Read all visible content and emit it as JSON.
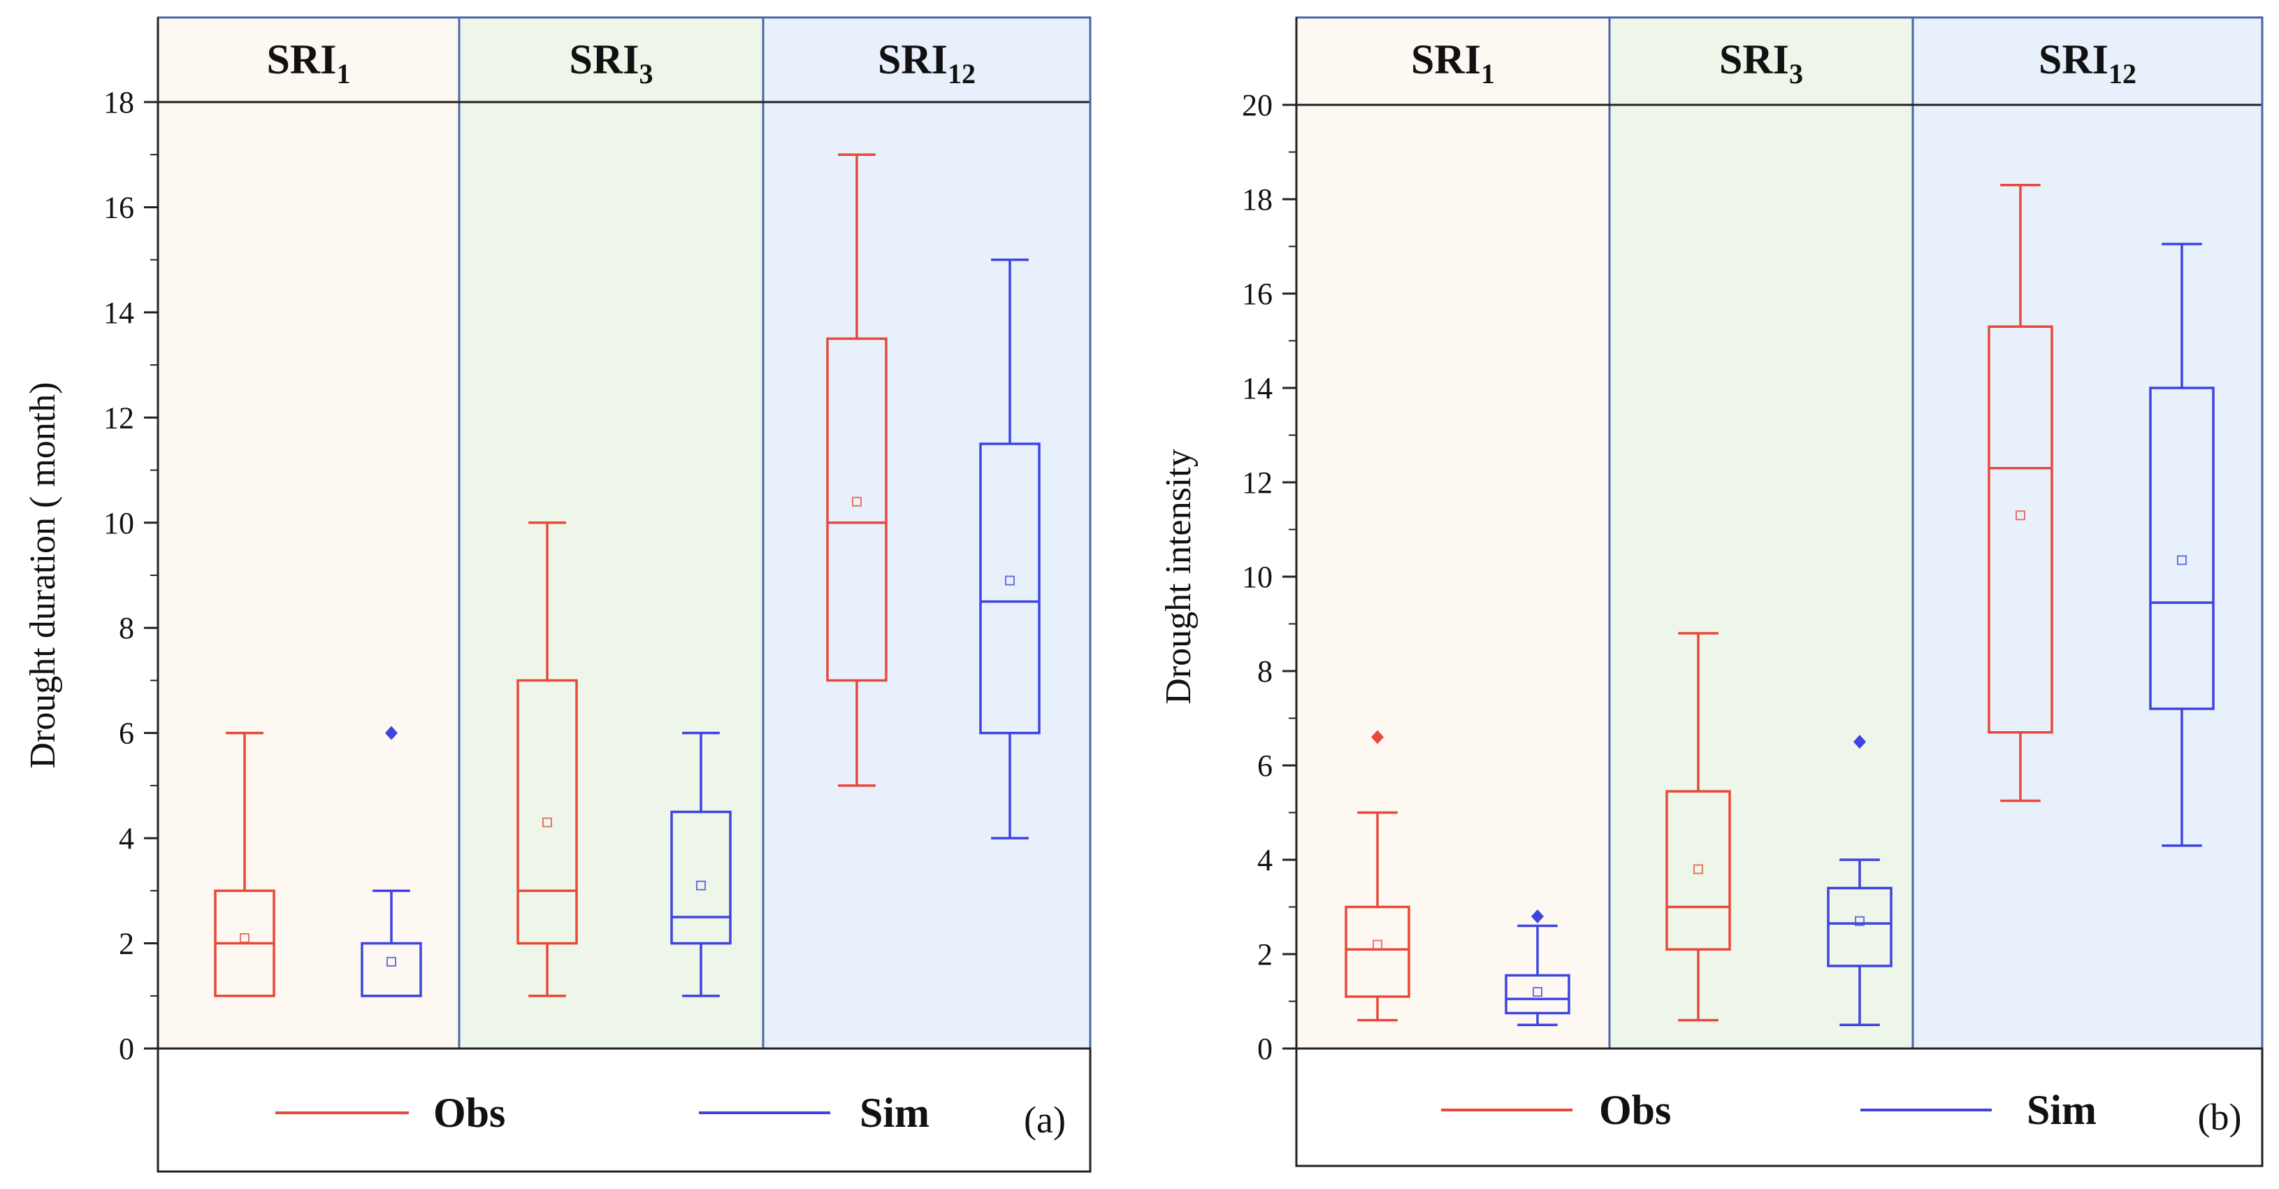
{
  "panels": [
    {
      "tag": "(a)",
      "groups": [
        {
          "base": "SRI",
          "sub": "1",
          "bg": "#fdf8f1"
        },
        {
          "base": "SRI",
          "sub": "3",
          "bg": "#eef5e9"
        },
        {
          "base": "SRI",
          "sub": "12",
          "bg": "#e8f1fb"
        }
      ],
      "legend": [
        {
          "label": "Obs",
          "color": "#e8483a"
        },
        {
          "label": "Sim",
          "color": "#3e44e0"
        }
      ]
    },
    {
      "tag": "(b)",
      "groups": [
        {
          "base": "SRI",
          "sub": "1",
          "bg": "#fdf8f1"
        },
        {
          "base": "SRI",
          "sub": "3",
          "bg": "#eef5e9"
        },
        {
          "base": "SRI",
          "sub": "12",
          "bg": "#e8f1fb"
        }
      ],
      "legend": [
        {
          "label": "Obs",
          "color": "#e8483a"
        },
        {
          "label": "Sim",
          "color": "#3e44e0"
        }
      ]
    }
  ],
  "chart_data": [
    {
      "type": "box",
      "ylabel": "Drought duration ( month)",
      "ylim": [
        0,
        18
      ],
      "yticks": [
        "0",
        "2",
        "4",
        "6",
        "8",
        "10",
        "12",
        "14",
        "16",
        "18"
      ],
      "categories": [
        "SRI1",
        "SRI3",
        "SRI12"
      ],
      "series": [
        {
          "name": "Obs",
          "color": "#e8483a",
          "boxes": [
            {
              "min": 1,
              "q1": 1,
              "median": 2,
              "q3": 3,
              "max": 6,
              "mean": 2.1,
              "outliers": []
            },
            {
              "min": 1,
              "q1": 2,
              "median": 3,
              "q3": 7,
              "max": 10,
              "mean": 4.3,
              "outliers": []
            },
            {
              "min": 5,
              "q1": 7,
              "median": 10,
              "q3": 13.5,
              "max": 17,
              "mean": 10.4,
              "outliers": []
            }
          ]
        },
        {
          "name": "Sim",
          "color": "#3e44e0",
          "boxes": [
            {
              "min": 1,
              "q1": 1,
              "median": 1,
              "q3": 2,
              "max": 3,
              "mean": 1.65,
              "outliers": [
                6
              ]
            },
            {
              "min": 1,
              "q1": 2,
              "median": 2.5,
              "q3": 4.5,
              "max": 6,
              "mean": 3.1,
              "outliers": []
            },
            {
              "min": 4,
              "q1": 6,
              "median": 8.5,
              "q3": 11.5,
              "max": 15,
              "mean": 8.9,
              "outliers": []
            }
          ]
        }
      ]
    },
    {
      "type": "box",
      "ylabel": "Drought intensity",
      "ylim": [
        0,
        20
      ],
      "yticks": [
        "0",
        "2",
        "4",
        "6",
        "8",
        "10",
        "12",
        "14",
        "16",
        "18",
        "20"
      ],
      "categories": [
        "SRI1",
        "SRI3",
        "SRI12"
      ],
      "series": [
        {
          "name": "Obs",
          "color": "#e8483a",
          "boxes": [
            {
              "min": 0.6,
              "q1": 1.1,
              "median": 2.1,
              "q3": 3.0,
              "max": 5.0,
              "mean": 2.2,
              "outliers": [
                6.6
              ]
            },
            {
              "min": 0.6,
              "q1": 2.1,
              "median": 3.0,
              "q3": 5.45,
              "max": 8.8,
              "mean": 3.8,
              "outliers": []
            },
            {
              "min": 5.25,
              "q1": 6.7,
              "median": 12.3,
              "q3": 15.3,
              "max": 18.3,
              "mean": 11.3,
              "outliers": []
            }
          ]
        },
        {
          "name": "Sim",
          "color": "#3e44e0",
          "boxes": [
            {
              "min": 0.5,
              "q1": 0.75,
              "median": 1.05,
              "q3": 1.55,
              "max": 2.6,
              "mean": 1.2,
              "outliers": [
                2.8
              ]
            },
            {
              "min": 0.5,
              "q1": 1.75,
              "median": 2.65,
              "q3": 3.4,
              "max": 4.0,
              "mean": 2.7,
              "outliers": [
                6.5
              ]
            },
            {
              "min": 4.3,
              "q1": 7.2,
              "median": 9.45,
              "q3": 14.0,
              "max": 17.05,
              "mean": 10.35,
              "outliers": []
            }
          ]
        }
      ]
    }
  ]
}
